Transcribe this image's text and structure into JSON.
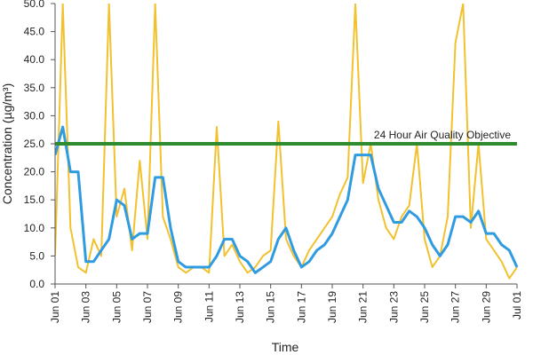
{
  "chart_data": {
    "type": "line",
    "xlabel": "Time",
    "ylabel": "Concentration (µg/m³)",
    "x": [
      1,
      1.5,
      2,
      2.5,
      3,
      3.5,
      4,
      4.5,
      5,
      5.5,
      6,
      6.5,
      7,
      7.5,
      8,
      8.5,
      9,
      9.5,
      10,
      10.5,
      11,
      11.5,
      12,
      12.5,
      13,
      13.5,
      14,
      14.5,
      15,
      15.5,
      16,
      16.5,
      17,
      17.5,
      18,
      18.5,
      19,
      19.5,
      20,
      20.5,
      21,
      21.5,
      22,
      22.5,
      23,
      23.5,
      24,
      24.5,
      25,
      25.5,
      26,
      26.5,
      27,
      27.5,
      28,
      28.5,
      29,
      29.5,
      30,
      30.5,
      31
    ],
    "series": [
      {
        "color": "#f2c12e",
        "values": [
          5,
          50,
          10,
          3,
          2,
          8,
          5,
          50,
          12,
          17,
          6,
          22,
          8,
          50,
          12,
          8,
          3,
          2,
          3,
          3,
          2,
          28,
          5,
          7,
          4,
          2,
          3,
          5,
          6,
          29,
          8,
          5,
          3,
          6,
          8,
          10,
          12,
          16,
          19,
          50,
          18,
          25,
          15,
          10,
          8,
          12,
          14,
          25,
          8,
          3,
          5,
          12,
          43,
          50,
          10,
          25,
          8,
          6,
          4,
          1,
          3
        ]
      },
      {
        "color": "#2f9be0",
        "values": [
          23,
          28,
          20,
          20,
          4,
          4,
          6,
          8,
          15,
          14,
          8,
          9,
          9,
          19,
          19,
          10,
          4,
          3,
          3,
          3,
          3,
          5,
          8,
          8,
          5,
          4,
          2,
          3,
          4,
          8,
          10,
          6,
          3,
          4,
          6,
          7,
          9,
          12,
          15,
          23,
          23,
          23,
          17,
          14,
          11,
          11,
          13,
          12,
          10,
          7,
          5,
          7,
          12,
          12,
          11,
          13,
          9,
          9,
          7,
          6,
          3
        ]
      }
    ],
    "reference_line": {
      "value": 25,
      "label": "24 Hour Air Quality Objective",
      "color": "#2e8b2e"
    },
    "xlim": [
      1,
      31
    ],
    "xticks": [
      {
        "value": 1,
        "label": "Jun 01"
      },
      {
        "value": 3,
        "label": "Jun 03"
      },
      {
        "value": 5,
        "label": "Jun 05"
      },
      {
        "value": 7,
        "label": "Jun 07"
      },
      {
        "value": 9,
        "label": "Jun 09"
      },
      {
        "value": 11,
        "label": "Jun 11"
      },
      {
        "value": 13,
        "label": "Jun 13"
      },
      {
        "value": 15,
        "label": "Jun 15"
      },
      {
        "value": 17,
        "label": "Jun 17"
      },
      {
        "value": 19,
        "label": "Jun 19"
      },
      {
        "value": 21,
        "label": "Jun 21"
      },
      {
        "value": 23,
        "label": "Jun 23"
      },
      {
        "value": 25,
        "label": "Jun 25"
      },
      {
        "value": 27,
        "label": "Jun 27"
      },
      {
        "value": 29,
        "label": "Jun 29"
      },
      {
        "value": 31,
        "label": "Jul 01"
      }
    ],
    "ylim": [
      0,
      50
    ],
    "yticks": [
      {
        "value": 0,
        "label": "0.0"
      },
      {
        "value": 5,
        "label": "5.0"
      },
      {
        "value": 10,
        "label": "10.0"
      },
      {
        "value": 15,
        "label": "15.0"
      },
      {
        "value": 20,
        "label": "20.0"
      },
      {
        "value": 25,
        "label": "25.0"
      },
      {
        "value": 30,
        "label": "30.0"
      },
      {
        "value": 35,
        "label": "35.0"
      },
      {
        "value": 40,
        "label": "40.0"
      },
      {
        "value": 45,
        "label": "45.0"
      },
      {
        "value": 50,
        "label": "50.0"
      }
    ],
    "grid": false
  }
}
